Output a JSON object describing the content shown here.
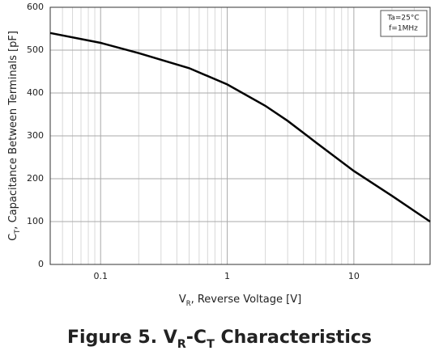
{
  "chart_data": {
    "type": "line",
    "logx": true,
    "title": [
      "Figure 5. V",
      "R",
      "-C",
      "T",
      " Characteristics"
    ],
    "xlabel": [
      "V",
      "R",
      ", Reverse Voltage [V]"
    ],
    "ylabel": [
      "C",
      "T",
      ", Capacitance Between Terminals [pF]"
    ],
    "annotations": [
      "Ta=25°C",
      "f=1MHz"
    ],
    "x": [
      0.04,
      0.1,
      0.2,
      0.5,
      1,
      2,
      3,
      5,
      10,
      20,
      40
    ],
    "series": [
      {
        "color": "#000000",
        "values": [
          540,
          517,
          493,
          458,
          420,
          370,
          335,
          285,
          218,
          160,
          100
        ]
      }
    ],
    "xlim": [
      0.04,
      40
    ],
    "xticks": [
      0.1,
      1,
      10
    ],
    "xminor": [
      0.05,
      0.06,
      0.07,
      0.08,
      0.09,
      0.2,
      0.3,
      0.4,
      0.5,
      0.6,
      0.7,
      0.8,
      0.9,
      2,
      3,
      4,
      5,
      6,
      7,
      8,
      9,
      20,
      30
    ],
    "ylim": [
      0,
      600
    ],
    "yticks": [
      0,
      100,
      200,
      300,
      400,
      500,
      600
    ],
    "grid": true
  }
}
